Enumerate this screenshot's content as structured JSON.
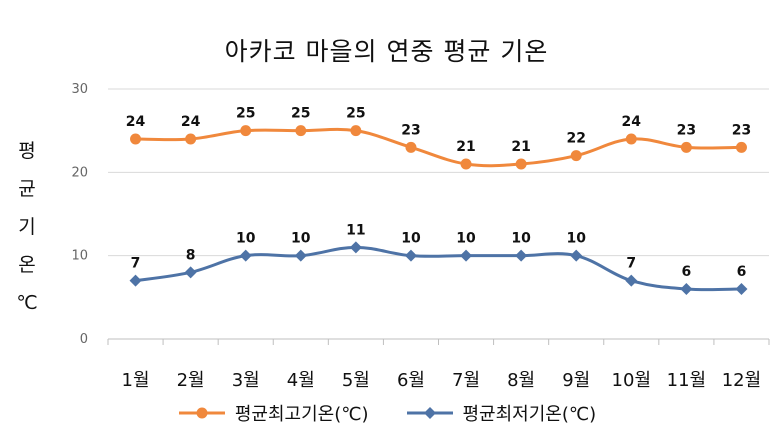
{
  "chart_data": {
    "type": "line",
    "title": "아카코 마을의 연중 평균 기온",
    "ylabel_chars": [
      "평",
      "균",
      "기",
      "온",
      "℃"
    ],
    "categories": [
      "1월",
      "2월",
      "3월",
      "4월",
      "5월",
      "6월",
      "7월",
      "8월",
      "9월",
      "10월",
      "11월",
      "12월"
    ],
    "ylim": [
      0,
      30
    ],
    "yticks": [
      0,
      10,
      20,
      30
    ],
    "grid": true,
    "legend_position": "bottom",
    "series": [
      {
        "name": "평균최고기온(℃)",
        "color": "#F0883C",
        "marker": "circle",
        "values": [
          24,
          24,
          25,
          25,
          25,
          23,
          21,
          21,
          22,
          24,
          23,
          23
        ]
      },
      {
        "name": "평균최저기온(℃)",
        "color": "#4E73A6",
        "marker": "diamond",
        "values": [
          7,
          8,
          10,
          10,
          11,
          10,
          10,
          10,
          10,
          7,
          6,
          6
        ]
      }
    ]
  }
}
